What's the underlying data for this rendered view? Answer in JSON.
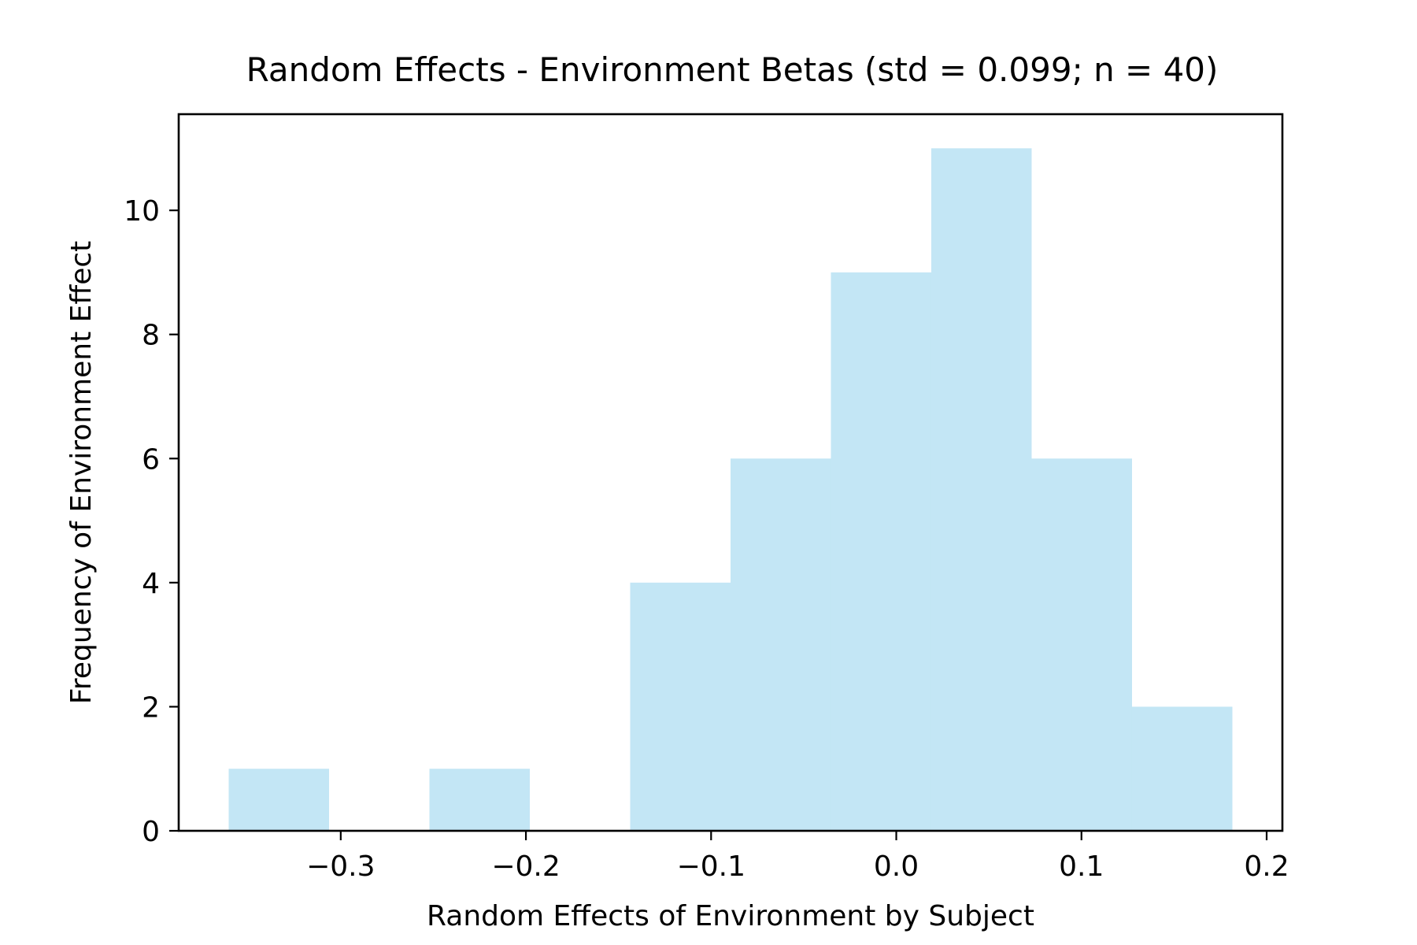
{
  "chart_data": {
    "type": "bar",
    "title": "Random Effects - Environment Betas (std = 0.099; n = 40)",
    "xlabel": "Random Effects of Environment by Subject",
    "ylabel": "Frequency of Environment Effect",
    "bins": [
      {
        "start": -0.3605,
        "end": -0.3063,
        "count": 1
      },
      {
        "start": -0.3063,
        "end": -0.2521,
        "count": 0
      },
      {
        "start": -0.2521,
        "end": -0.1979,
        "count": 1
      },
      {
        "start": -0.1979,
        "end": -0.1437,
        "count": 0
      },
      {
        "start": -0.1437,
        "end": -0.0895,
        "count": 4
      },
      {
        "start": -0.0895,
        "end": -0.0353,
        "count": 6
      },
      {
        "start": -0.0353,
        "end": 0.0189,
        "count": 9
      },
      {
        "start": 0.0189,
        "end": 0.0731,
        "count": 11
      },
      {
        "start": 0.0731,
        "end": 0.1273,
        "count": 6
      },
      {
        "start": 0.1273,
        "end": 0.1815,
        "count": 2
      }
    ],
    "xlim": [
      -0.3875,
      0.2085
    ],
    "ylim": [
      0,
      11.55
    ],
    "x_ticks": [
      {
        "value": -0.3,
        "label": "−0.3"
      },
      {
        "value": -0.2,
        "label": "−0.2"
      },
      {
        "value": -0.1,
        "label": "−0.1"
      },
      {
        "value": 0.0,
        "label": "0.0"
      },
      {
        "value": 0.1,
        "label": "0.1"
      },
      {
        "value": 0.2,
        "label": "0.2"
      }
    ],
    "y_ticks": [
      {
        "value": 0,
        "label": "0"
      },
      {
        "value": 2,
        "label": "2"
      },
      {
        "value": 4,
        "label": "4"
      },
      {
        "value": 6,
        "label": "6"
      },
      {
        "value": 8,
        "label": "8"
      },
      {
        "value": 10,
        "label": "10"
      }
    ],
    "bar_color": "#87ceeb",
    "bar_opacity": 0.5,
    "grid": false,
    "legend": "none"
  }
}
